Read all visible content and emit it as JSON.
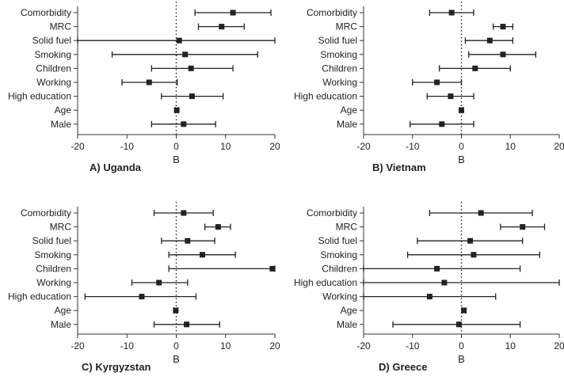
{
  "chart_data": [
    {
      "type": "forest",
      "title": "A) Uganda",
      "xlabel": "B",
      "xlim": [
        -20,
        20
      ],
      "xticks": [
        "-20",
        "-10",
        "0",
        "10",
        "20"
      ],
      "reference_line": 0,
      "categories": [
        "Comorbidity",
        "MRC",
        "Solid fuel",
        "Smoking",
        "Children",
        "Working",
        "High education",
        "Age",
        "Male"
      ],
      "estimates": [
        11.5,
        9.2,
        0.6,
        1.8,
        3.0,
        -5.5,
        3.2,
        0.1,
        1.5
      ],
      "ci_low": [
        3.8,
        4.5,
        -20.0,
        -13.0,
        -5.0,
        -11.0,
        -3.0,
        -0.2,
        -5.0
      ],
      "ci_high": [
        19.2,
        13.8,
        20.0,
        16.5,
        11.5,
        0.2,
        9.5,
        0.4,
        8.0
      ]
    },
    {
      "type": "forest",
      "title": "B) Vietnam",
      "xlabel": "B",
      "xlim": [
        -20,
        20
      ],
      "xticks": [
        "-20",
        "-10",
        "0",
        "10",
        "20"
      ],
      "reference_line": 0,
      "categories": [
        "Comorbidity",
        "MRC",
        "Solid fuel",
        "Smoking",
        "Children",
        "Working",
        "High education",
        "Age",
        "Male"
      ],
      "estimates": [
        -2.0,
        8.5,
        5.8,
        8.5,
        2.8,
        -5.0,
        -2.2,
        0.0,
        -4.0
      ],
      "ci_low": [
        -6.5,
        6.5,
        0.8,
        1.5,
        -4.5,
        -10.0,
        -7.0,
        -0.3,
        -10.5
      ],
      "ci_high": [
        2.5,
        10.5,
        10.5,
        15.2,
        10.0,
        0.0,
        2.5,
        0.3,
        2.5
      ]
    },
    {
      "type": "forest",
      "title": "C) Kyrgyzstan",
      "xlabel": "B",
      "xlim": [
        -20,
        20
      ],
      "xticks": [
        "-20",
        "-10",
        "0",
        "10",
        "20"
      ],
      "reference_line": 0,
      "categories": [
        "Comorbidity",
        "MRC",
        "Solid fuel",
        "Smoking",
        "Children",
        "Working",
        "High education",
        "Age",
        "Male"
      ],
      "estimates": [
        1.5,
        8.5,
        2.3,
        5.3,
        19.5,
        -3.5,
        -7.0,
        -0.1,
        2.1
      ],
      "ci_low": [
        -4.5,
        5.8,
        -3.0,
        -1.5,
        -1.5,
        -9.0,
        -18.5,
        -0.4,
        -4.5
      ],
      "ci_high": [
        7.5,
        11.0,
        7.8,
        12.0,
        20.0,
        2.3,
        4.0,
        0.2,
        8.8
      ]
    },
    {
      "type": "forest",
      "title": "D) Greece",
      "xlabel": "B",
      "xlim": [
        -20,
        20
      ],
      "xticks": [
        "-20",
        "-10",
        "0",
        "10",
        "20"
      ],
      "reference_line": 0,
      "categories": [
        "Comorbidity",
        "MRC",
        "Solid fuel",
        "Smoking",
        "Children",
        "High education",
        "Working",
        "Age",
        "Male"
      ],
      "estimates": [
        4.0,
        12.5,
        1.8,
        2.5,
        -5.0,
        -3.5,
        -6.5,
        0.5,
        -0.5
      ],
      "ci_low": [
        -6.5,
        8.0,
        -9.0,
        -11.0,
        -20.0,
        -20.0,
        -20.0,
        0.1,
        -14.0
      ],
      "ci_high": [
        14.5,
        17.0,
        12.5,
        16.0,
        12.0,
        20.0,
        7.0,
        0.9,
        12.0
      ]
    }
  ]
}
